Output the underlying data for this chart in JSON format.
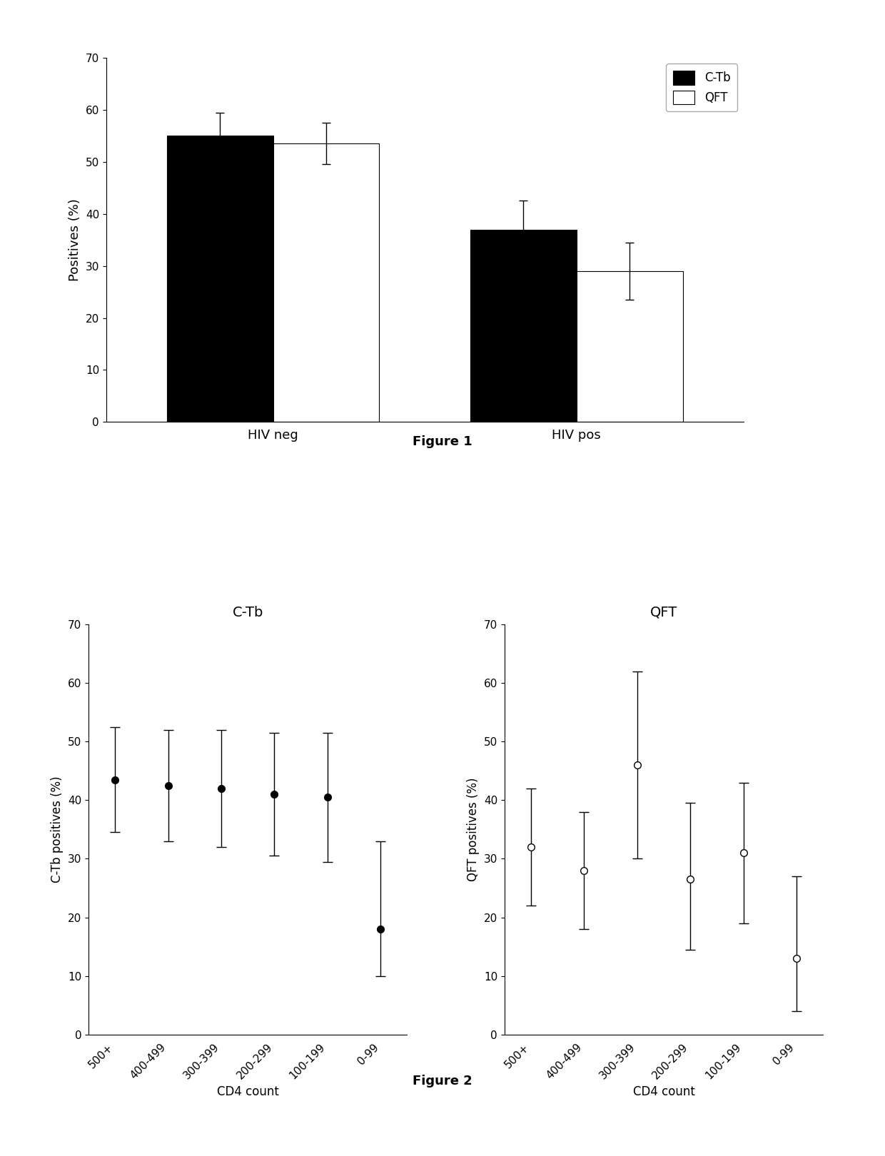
{
  "fig1": {
    "groups": [
      "HIV neg",
      "HIV pos"
    ],
    "ctb_values": [
      55.0,
      37.0
    ],
    "qft_values": [
      53.5,
      29.0
    ],
    "ctb_yerr_upper": [
      4.5,
      5.5
    ],
    "ctb_yerr_lower": [
      4.5,
      5.5
    ],
    "qft_yerr_upper": [
      4.0,
      5.5
    ],
    "qft_yerr_lower": [
      4.0,
      5.5
    ],
    "ylabel": "Positives (%)",
    "ylim": [
      0,
      70
    ],
    "yticks": [
      0,
      10,
      20,
      30,
      40,
      50,
      60,
      70
    ],
    "bar_width": 0.35,
    "figure_label": "Figure 1"
  },
  "fig2_ctb": {
    "categories": [
      "500+",
      "400-499",
      "300-399",
      "200-299",
      "100-199",
      "0-99"
    ],
    "values": [
      43.5,
      42.5,
      42.0,
      41.0,
      40.5,
      18.0
    ],
    "yerr_upper": [
      9.0,
      9.5,
      10.0,
      10.5,
      11.0,
      15.0
    ],
    "yerr_lower": [
      9.0,
      9.5,
      10.0,
      10.5,
      11.0,
      8.0
    ],
    "ylabel": "C-Tb positives (%)",
    "xlabel": "CD4 count",
    "title": "C-Tb",
    "ylim": [
      0,
      70
    ],
    "yticks": [
      0,
      10,
      20,
      30,
      40,
      50,
      60,
      70
    ]
  },
  "fig2_qft": {
    "categories": [
      "500+",
      "400-499",
      "300-399",
      "200-299",
      "100-199",
      "0-99"
    ],
    "values": [
      32.0,
      28.0,
      46.0,
      26.5,
      31.0,
      13.0
    ],
    "yerr_upper": [
      10.0,
      10.0,
      16.0,
      13.0,
      12.0,
      14.0
    ],
    "yerr_lower": [
      10.0,
      10.0,
      16.0,
      12.0,
      12.0,
      9.0
    ],
    "ylabel": "QFT positives (%)",
    "xlabel": "CD4 count",
    "title": "QFT",
    "ylim": [
      0,
      70
    ],
    "yticks": [
      0,
      10,
      20,
      30,
      40,
      50,
      60,
      70
    ]
  },
  "figure1_label": "Figure 1",
  "figure2_label": "Figure 2",
  "bg_color": "#ffffff",
  "text_color": "#000000",
  "bar_ctb_color": "#000000",
  "bar_qft_color": "#ffffff",
  "bar_edge_color": "#000000"
}
